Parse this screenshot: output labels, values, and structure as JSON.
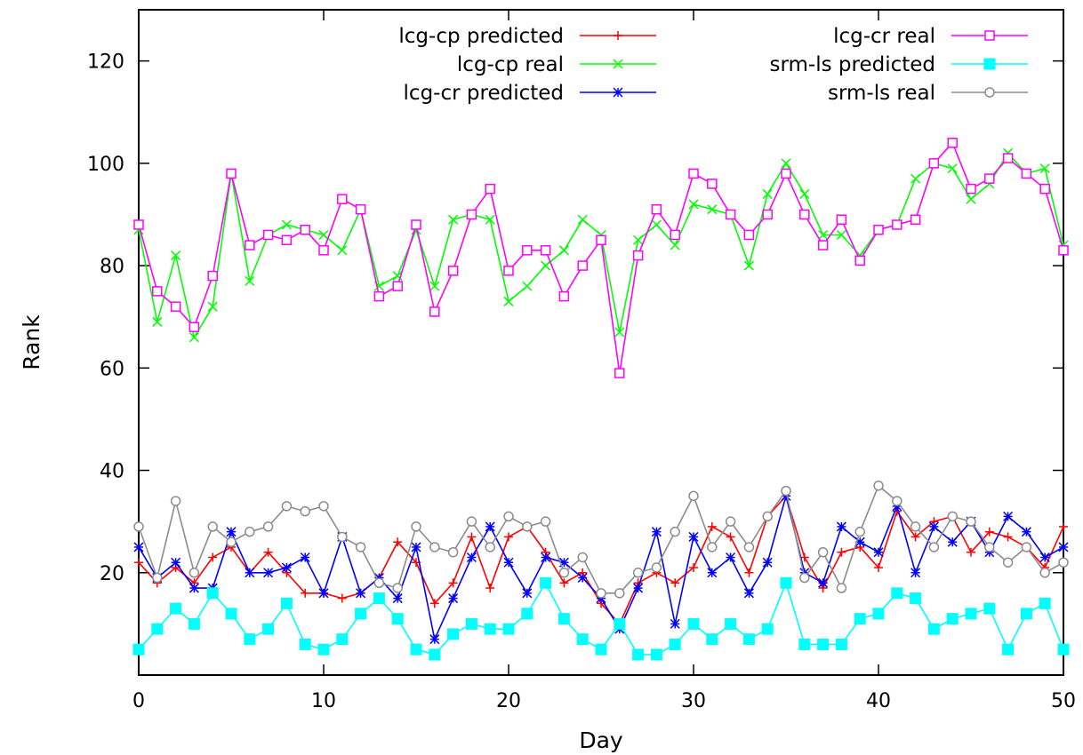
{
  "chart_data": {
    "type": "line",
    "title": "",
    "xlabel": "Day",
    "ylabel": "Rank",
    "xlim": [
      0,
      50
    ],
    "ylim": [
      0,
      130
    ],
    "xticks": [
      0,
      10,
      20,
      30,
      40,
      50
    ],
    "yticks": [
      20,
      40,
      60,
      80,
      100,
      120
    ],
    "grid": false,
    "legend_position": "top, two columns",
    "x": [
      0,
      1,
      2,
      3,
      4,
      5,
      6,
      7,
      8,
      9,
      10,
      11,
      12,
      13,
      14,
      15,
      16,
      17,
      18,
      19,
      20,
      21,
      22,
      23,
      24,
      25,
      26,
      27,
      28,
      29,
      30,
      31,
      32,
      33,
      34,
      35,
      36,
      37,
      38,
      39,
      40,
      41,
      42,
      43,
      44,
      45,
      46,
      47,
      48,
      49,
      50
    ],
    "series": [
      {
        "name": "lcg-cp predicted",
        "color": "#ff0000",
        "marker": "plus",
        "values": [
          22,
          18,
          21,
          18,
          23,
          25,
          20,
          24,
          20,
          16,
          16,
          15,
          16,
          19,
          26,
          22,
          14,
          18,
          27,
          17,
          27,
          29,
          24,
          18,
          20,
          14,
          10,
          18,
          20,
          18,
          21,
          29,
          27,
          20,
          31,
          35,
          23,
          17,
          24,
          25,
          21,
          32,
          27,
          30,
          31,
          24,
          28,
          27,
          25,
          21,
          29
        ]
      },
      {
        "name": "lcg-cp real",
        "color": "#00ff00",
        "marker": "cross",
        "values": [
          87,
          69,
          82,
          66,
          72,
          98,
          77,
          86,
          88,
          87,
          86,
          83,
          91,
          76,
          78,
          87,
          76,
          89,
          90,
          89,
          73,
          76,
          80,
          83,
          89,
          86,
          67,
          85,
          88,
          84,
          92,
          91,
          90,
          80,
          94,
          100,
          94,
          86,
          86,
          82,
          87,
          88,
          97,
          100,
          99,
          93,
          96,
          102,
          98,
          99,
          84
        ]
      },
      {
        "name": "lcg-cr predicted",
        "color": "#0000ff",
        "marker": "star",
        "values": [
          25,
          19,
          22,
          17,
          17,
          28,
          20,
          20,
          21,
          23,
          16,
          27,
          16,
          19,
          15,
          25,
          7,
          15,
          23,
          29,
          22,
          16,
          23,
          22,
          19,
          15,
          9,
          17,
          28,
          10,
          27,
          20,
          23,
          16,
          22,
          35,
          20,
          18,
          29,
          26,
          24,
          33,
          20,
          29,
          26,
          30,
          24,
          31,
          28,
          23,
          25
        ]
      },
      {
        "name": "lcg-cr real",
        "color": "#ff00ff",
        "marker": "open-square",
        "values": [
          88,
          75,
          72,
          68,
          78,
          98,
          84,
          86,
          85,
          87,
          83,
          93,
          91,
          74,
          76,
          88,
          71,
          79,
          90,
          95,
          79,
          83,
          83,
          74,
          80,
          85,
          59,
          82,
          91,
          86,
          98,
          96,
          90,
          86,
          90,
          98,
          90,
          84,
          89,
          81,
          87,
          88,
          89,
          100,
          104,
          95,
          97,
          101,
          98,
          95,
          83
        ]
      },
      {
        "name": "srm-ls predicted",
        "color": "#00ffff",
        "marker": "filled-square",
        "values": [
          5,
          9,
          13,
          10,
          16,
          12,
          7,
          9,
          14,
          6,
          5,
          7,
          12,
          15,
          11,
          5,
          4,
          8,
          10,
          9,
          9,
          12,
          18,
          11,
          7,
          5,
          10,
          4,
          4,
          6,
          10,
          7,
          10,
          7,
          9,
          18,
          6,
          6,
          6,
          11,
          12,
          16,
          15,
          9,
          11,
          12,
          13,
          5,
          12,
          14,
          5
        ]
      },
      {
        "name": "srm-ls real",
        "color": "#8c8c8c",
        "marker": "open-circle",
        "values": [
          29,
          19,
          34,
          20,
          29,
          26,
          28,
          29,
          33,
          32,
          33,
          27,
          25,
          18,
          17,
          29,
          25,
          24,
          30,
          25,
          31,
          29,
          30,
          20,
          23,
          16,
          16,
          20,
          21,
          28,
          35,
          25,
          30,
          25,
          31,
          36,
          19,
          24,
          17,
          28,
          37,
          34,
          29,
          25,
          31,
          30,
          25,
          22,
          25,
          20,
          22
        ]
      }
    ]
  }
}
